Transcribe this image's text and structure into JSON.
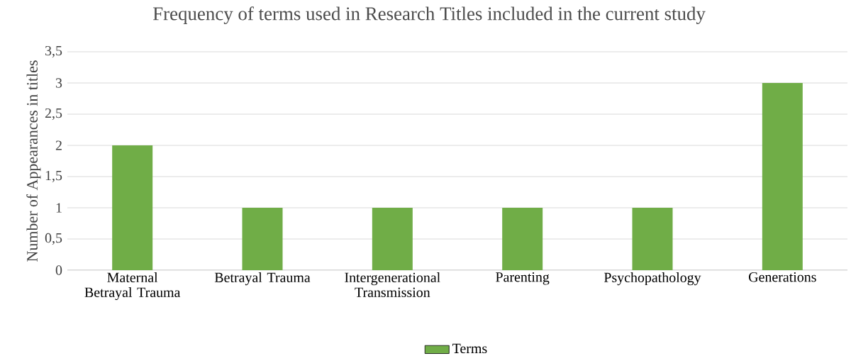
{
  "chart_data": {
    "type": "bar",
    "title": "Frequency of terms used in Research Titles included in the current study",
    "ylabel": "Number of Appearances in titles",
    "categories": [
      "Maternal Betrayal Trauma",
      "Betrayal Trauma",
      "Intergenerational Transmission",
      "Parenting",
      "Psychopathology",
      "Generations"
    ],
    "series": [
      {
        "name": "Terms",
        "color": "#70ad47",
        "values": [
          2,
          1,
          1,
          1,
          1,
          3
        ]
      }
    ],
    "ylim": [
      0,
      3.5
    ],
    "yticks": [
      0,
      {
        "value": 0.5,
        "label": "0,5"
      },
      1,
      {
        "value": 1.5,
        "label": "1,5"
      },
      2,
      {
        "value": 2.5,
        "label": "2,5"
      },
      3,
      {
        "value": 3.5,
        "label": "3,5"
      }
    ],
    "grid": "y",
    "legend": "bottom"
  }
}
